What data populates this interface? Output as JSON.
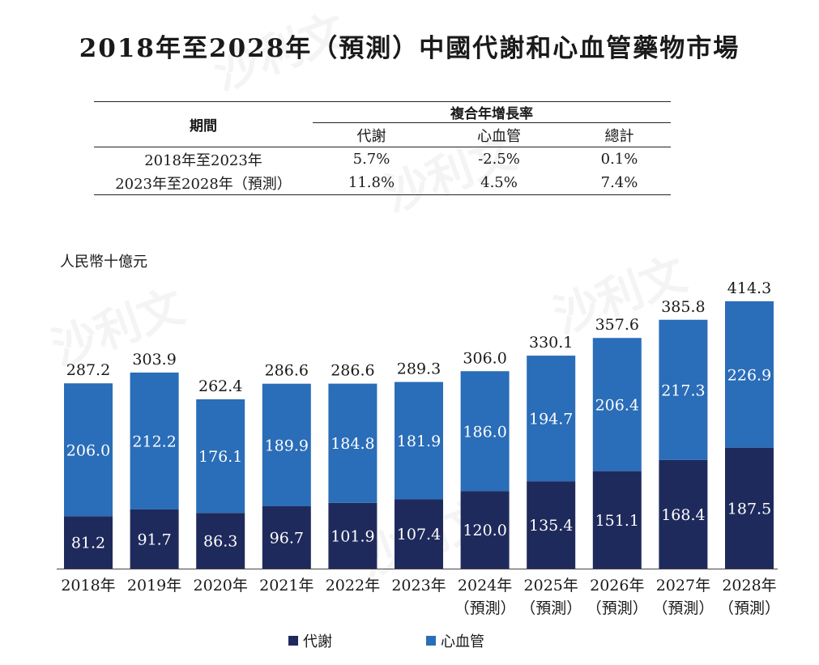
{
  "title": "2018年至2028年（預測）中國代謝和心血管藥物市場",
  "table": {
    "period_header": "期間",
    "cagr_header": "複合年增長率",
    "columns": [
      "代謝",
      "心血管",
      "總計"
    ],
    "rows": [
      {
        "period": "2018年至2023年",
        "values": [
          "5.7%",
          "-2.5%",
          "0.1%"
        ]
      },
      {
        "period": "2023年至2028年（預測）",
        "values": [
          "11.8%",
          "4.5%",
          "7.4%"
        ]
      }
    ]
  },
  "unit_label": "人民幣十億元",
  "watermark": "沙利文",
  "chart_data": {
    "type": "bar",
    "stacked": true,
    "categories": [
      "2018年",
      "2019年",
      "2020年",
      "2021年",
      "2022年",
      "2023年",
      "2024年",
      "2025年",
      "2026年",
      "2027年",
      "2028年"
    ],
    "category_sublabels": [
      "",
      "",
      "",
      "",
      "",
      "",
      "（預測）",
      "（預測）",
      "（預測）",
      "（預測）",
      "（預測）"
    ],
    "series": [
      {
        "name": "代謝",
        "color": "#1f2a5c",
        "values": [
          81.2,
          91.7,
          86.3,
          96.7,
          101.9,
          107.4,
          120.0,
          135.4,
          151.1,
          168.4,
          187.5
        ]
      },
      {
        "name": "心血管",
        "color": "#2a6db8",
        "values": [
          206.0,
          212.2,
          176.1,
          189.9,
          184.8,
          181.9,
          186.0,
          194.7,
          206.4,
          217.3,
          226.9
        ]
      }
    ],
    "totals": [
      "287.2",
      "303.9",
      "262.4",
      "286.6",
      "286.6",
      "289.3",
      "306.0",
      "330.1",
      "357.6",
      "385.8",
      "414.3"
    ],
    "series_labels": [
      [
        "81.2",
        "91.7",
        "86.3",
        "96.7",
        "101.9",
        "107.4",
        "120.0",
        "135.4",
        "151.1",
        "168.4",
        "187.5"
      ],
      [
        "206.0",
        "212.2",
        "176.1",
        "189.9",
        "184.8",
        "181.9",
        "186.0",
        "194.7",
        "206.4",
        "217.3",
        "226.9"
      ]
    ],
    "ylim": [
      0,
      414.3
    ],
    "grid": false,
    "legend_position": "bottom"
  }
}
